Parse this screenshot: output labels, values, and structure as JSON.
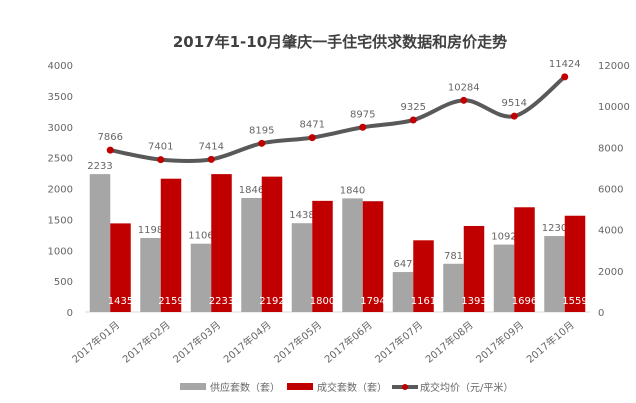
{
  "chart_data": {
    "type": "bar+line",
    "title": "2017年1-10月肇庆一手住宅供求数据和房价走势",
    "categories": [
      "2017年01月",
      "2017年02月",
      "2017年03月",
      "2017年04月",
      "2017年05月",
      "2017年06月",
      "2017年07月",
      "2017年08月",
      "2017年09月",
      "2017年10月"
    ],
    "series": [
      {
        "name": "供应套数（套）",
        "type": "bar",
        "axis": "left",
        "color": "#a6a6a6",
        "values": [
          2233,
          1198,
          1106,
          1846,
          1438,
          1840,
          647,
          781,
          1092,
          1230
        ]
      },
      {
        "name": "成交套数（套）",
        "type": "bar",
        "axis": "left",
        "color": "#c00000",
        "values": [
          1435,
          2159,
          2233,
          2192,
          1800,
          1794,
          1161,
          1393,
          1696,
          1559
        ]
      },
      {
        "name": "成交均价（元/平米）",
        "type": "line",
        "axis": "right",
        "color": "#595959",
        "marker_color": "#c00000",
        "values": [
          7866,
          7401,
          7414,
          8195,
          8471,
          8975,
          9325,
          10284,
          9514,
          11424
        ]
      }
    ],
    "left_axis": {
      "ylim": [
        0,
        4000
      ],
      "ticks": [
        0,
        500,
        1000,
        1500,
        2000,
        2500,
        3000,
        3500,
        4000
      ]
    },
    "right_axis": {
      "ylim": [
        0,
        12000
      ],
      "ticks": [
        0,
        2000,
        4000,
        6000,
        8000,
        10000,
        12000
      ]
    },
    "grid": false,
    "legend": "bottom"
  }
}
